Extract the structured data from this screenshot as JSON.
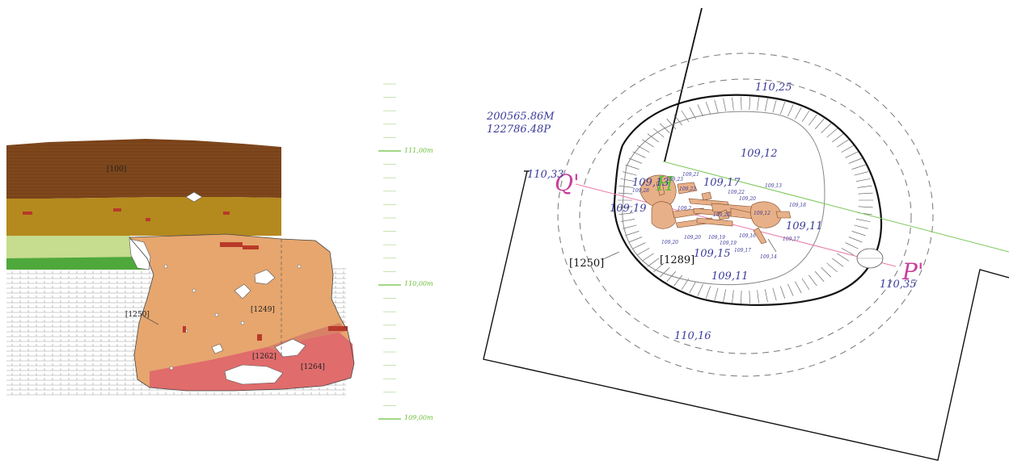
{
  "section": {
    "contexts": {
      "c100": "[100]",
      "c1250": "[1250]",
      "c1249": "[1249]",
      "c1262": "[1262]",
      "c1264": "[1264]"
    },
    "scale": {
      "top": "111,00m",
      "mid": "110,00m",
      "bottom": "109,00m"
    },
    "colors": {
      "topsoil": "#7a4218",
      "subsoil": "#b48a1e",
      "light_green": "#c6dc8e",
      "green": "#4fa83c",
      "fill_main": "#e6a66e",
      "fill_red": "#e06c6c",
      "scale_green": "#6dbf3a"
    }
  },
  "plan": {
    "coordinates": {
      "m": "200565.86M",
      "p": "122786.48P"
    },
    "markers": {
      "q": "Q'",
      "p": "P'",
      "h": "H"
    },
    "contexts": {
      "c1250": "[1250]",
      "c1289": "[1289]"
    },
    "elevations": {
      "e11025": "110,25",
      "e11033": "110,33",
      "e11035": "110,35",
      "e11016": "110,16",
      "e10912": "109,12",
      "e10917": "109,17",
      "e10913": "109,13",
      "e10919": "109,19",
      "e10911a": "109,11",
      "e10915": "109,15",
      "e10911b": "109,11"
    },
    "small_elevations": {
      "s1": "109,21",
      "s2": "109,23",
      "s3": "109,23",
      "s4": "109,28",
      "s5": "109,13",
      "s6": "109,22",
      "s7": "109,20",
      "s8": "109,18",
      "s9": "109,2",
      "s10": "109,26",
      "s11": "109,12",
      "s12": "109,20",
      "s13": "109,20",
      "s14": "109,19",
      "s15": "109,19",
      "s16": "109,16",
      "s17": "109,17",
      "s18": "109,17",
      "s19": "109,14"
    },
    "colors": {
      "bone": "#e8b088",
      "elevation_text": "#3a3a9a",
      "section_line": "#e87aa8",
      "h_line": "#7dc85a"
    }
  }
}
